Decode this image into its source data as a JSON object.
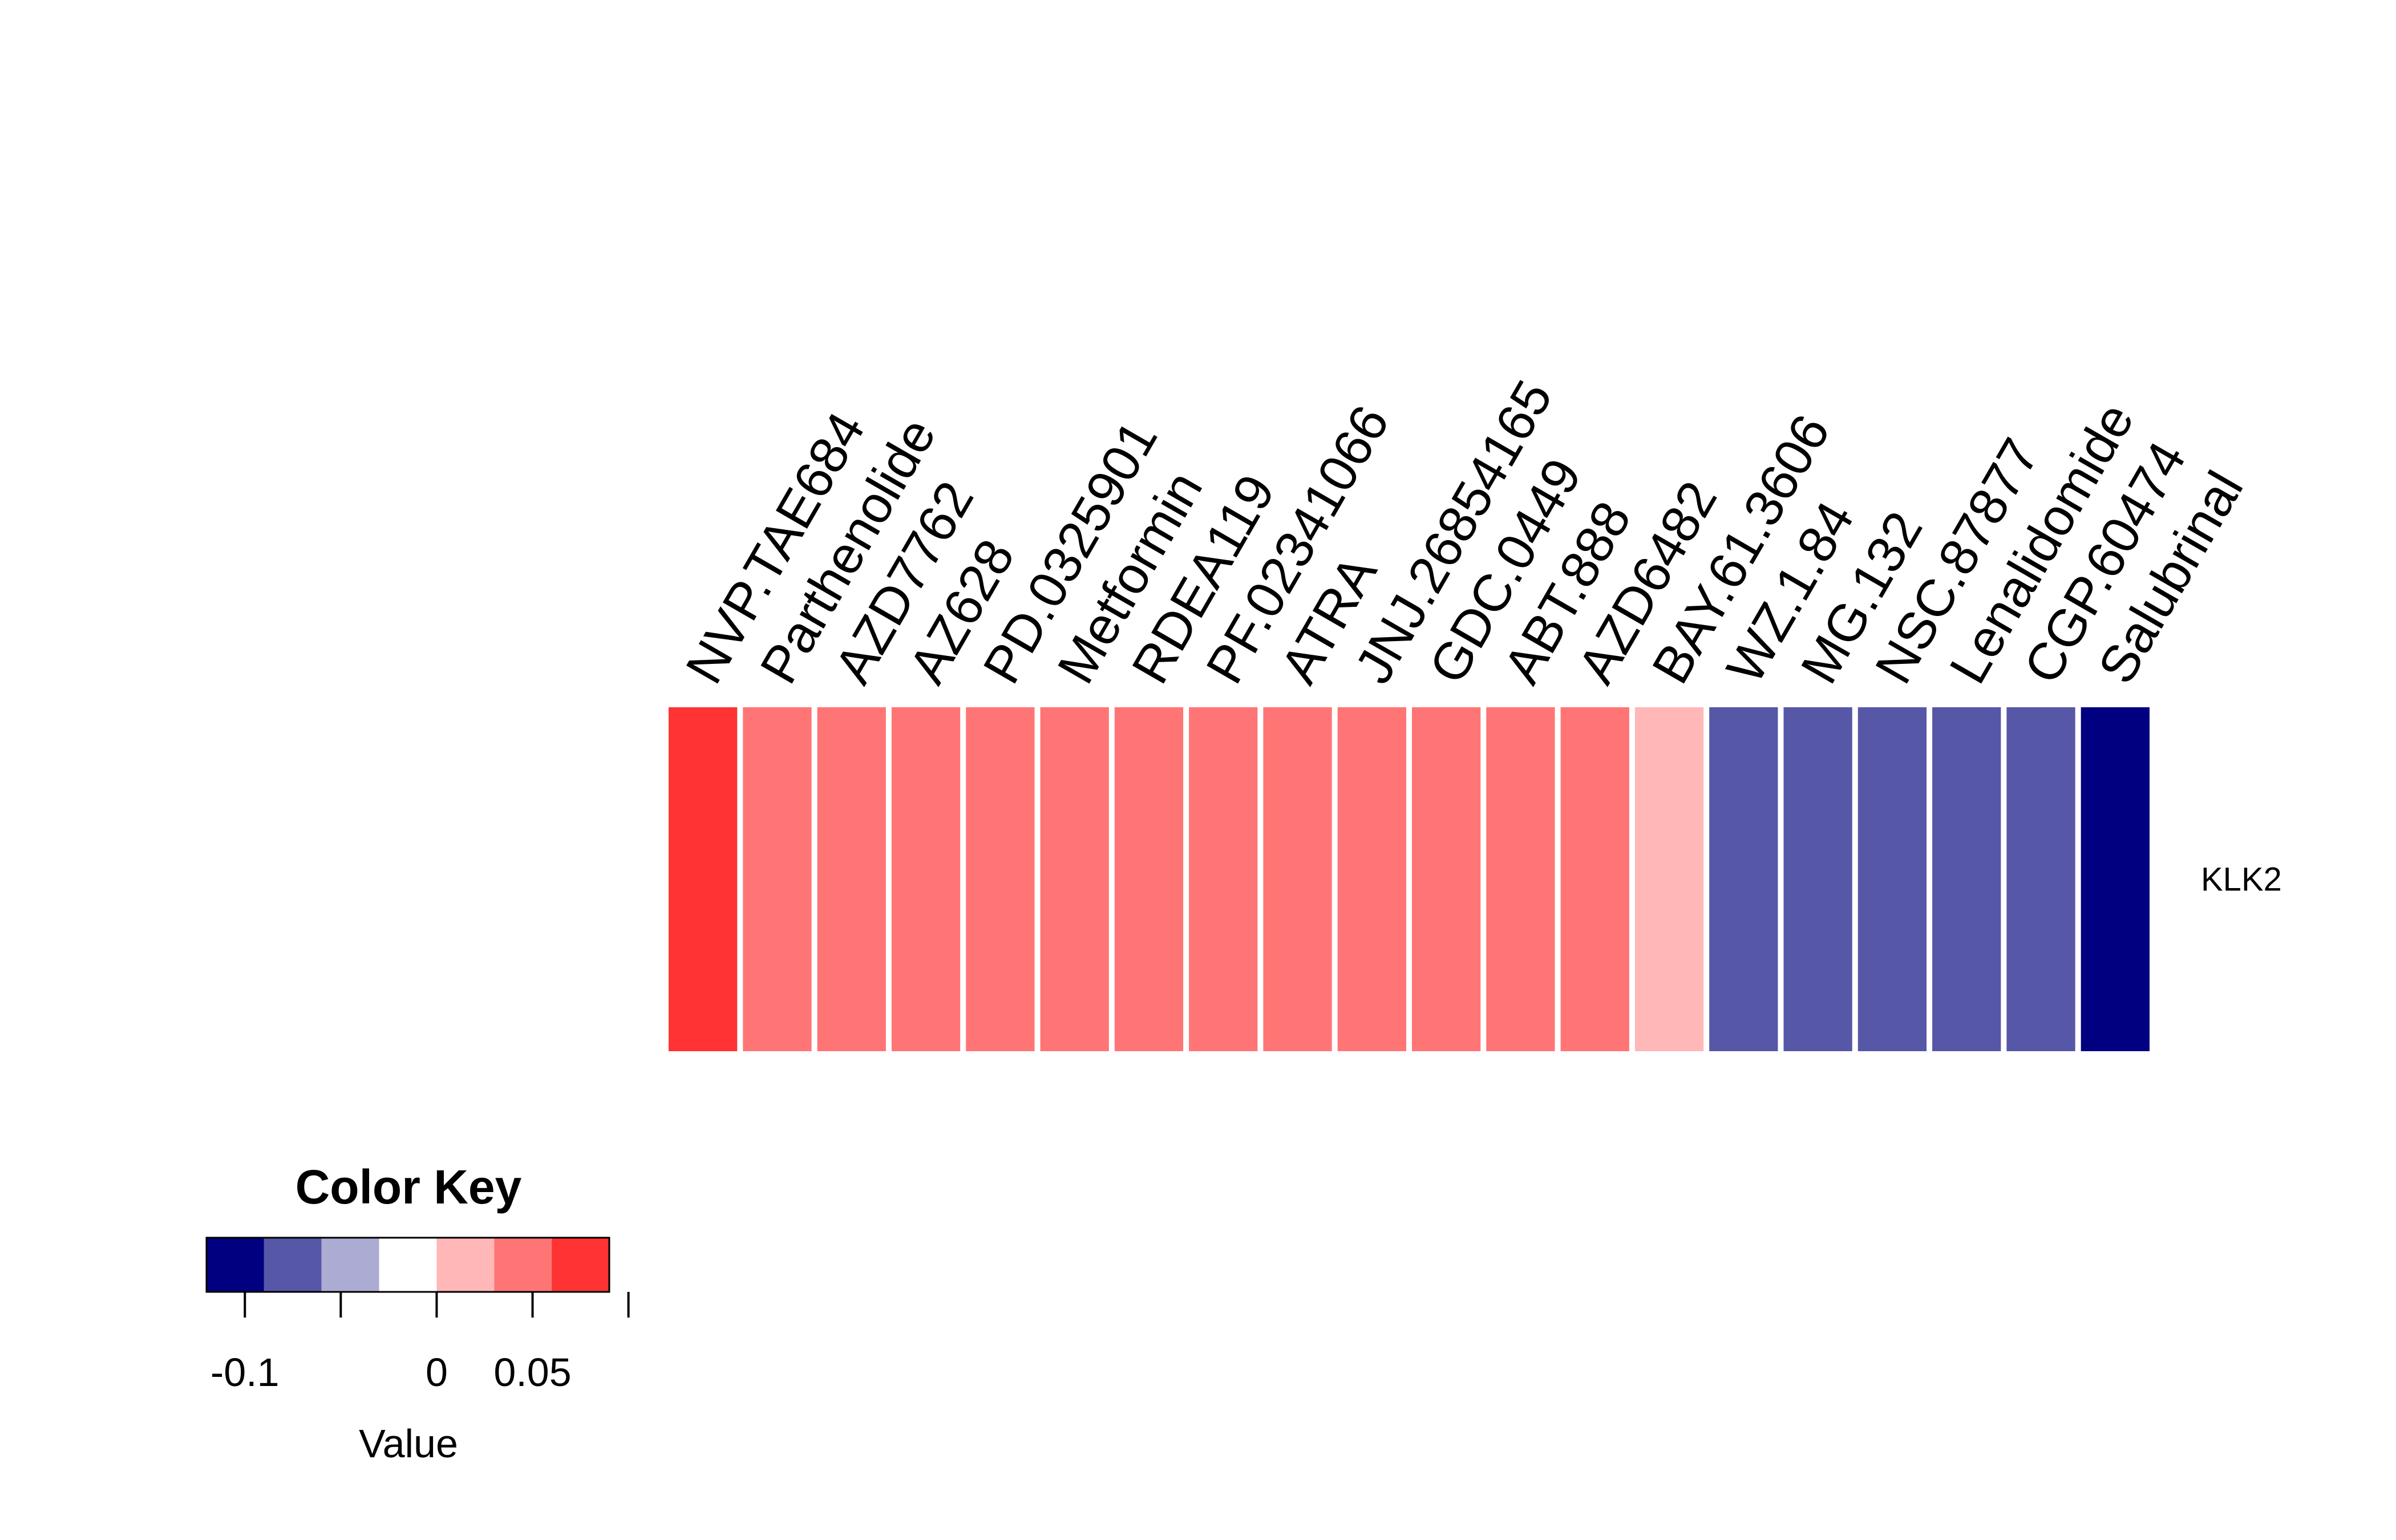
{
  "chart_data": {
    "type": "heatmap",
    "rows": [
      "KLK2"
    ],
    "columns": [
      "NVP.TAE684",
      "Parthenolide",
      "AZD7762",
      "AZ628",
      "PD.0325901",
      "Metformin",
      "RDEA119",
      "PF.02341066",
      "ATRA",
      "JNJ.26854165",
      "GDC.0449",
      "ABT.888",
      "AZD6482",
      "BAY.61.3606",
      "WZ.1.84",
      "MG.132",
      "NSC.87877",
      "Lenalidomide",
      "CGP.60474",
      "Salubrinal"
    ],
    "values": [
      [
        0.08,
        0.05,
        0.05,
        0.05,
        0.05,
        0.05,
        0.05,
        0.05,
        0.05,
        0.05,
        0.05,
        0.05,
        0.05,
        0.025,
        -0.075,
        -0.075,
        -0.075,
        -0.075,
        -0.075,
        -0.11
      ]
    ],
    "color_key": {
      "title": "Color Key",
      "xlabel": "Value",
      "breaks": [
        -0.12,
        -0.09,
        -0.06,
        -0.03,
        0.0,
        0.03,
        0.06,
        0.09
      ],
      "bin_colors": [
        "#000080",
        "#5757A8",
        "#ABABD3",
        "#FFFFFF",
        "#FFB7B7",
        "#FF7575",
        "#FF3333"
      ],
      "ticks": [
        -0.1,
        -0.05,
        0.0,
        0.05,
        0.1
      ],
      "tick_labels": [
        "-0.1",
        "",
        "0",
        "0.05",
        ""
      ]
    }
  }
}
